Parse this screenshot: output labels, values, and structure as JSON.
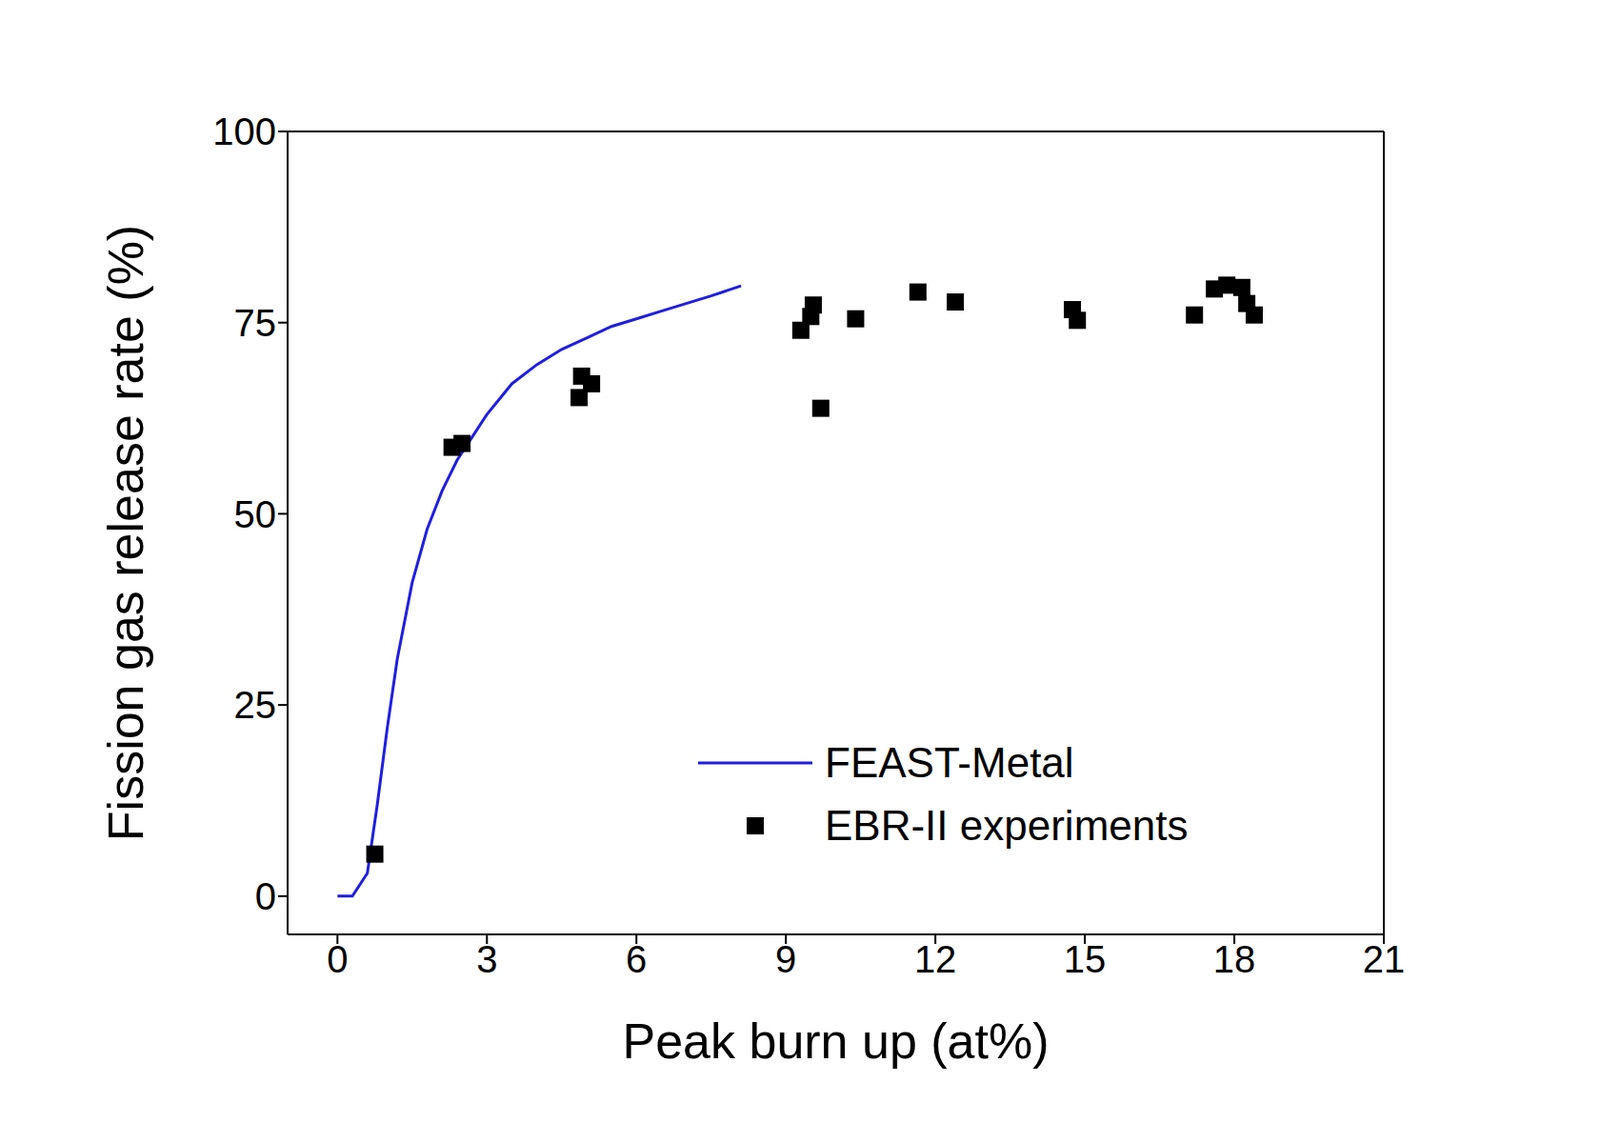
{
  "chart_data": {
    "type": "scatter",
    "x_label": "Peak burn up (at%)",
    "y_label": "Fission gas release rate (%)",
    "xlim": [
      -1,
      21
    ],
    "xticks": [
      0,
      3,
      6,
      9,
      12,
      15,
      18,
      21
    ],
    "ylim": [
      -5,
      100
    ],
    "yticks": [
      0,
      25,
      50,
      75,
      100
    ],
    "grid": false,
    "legend": "lower right",
    "series": [
      {
        "name": "FEAST-Metal",
        "type": "line",
        "color": "#1f1fe0",
        "marker": "none",
        "line_style": "solid",
        "x": [
          0,
          0.3,
          0.6,
          0.8,
          1.0,
          1.2,
          1.5,
          1.8,
          2.1,
          2.4,
          2.7,
          3.0,
          3.5,
          4.0,
          4.5,
          5.0,
          5.5,
          6.0,
          6.5,
          7.0,
          7.5,
          8.1
        ],
        "values": [
          0,
          0,
          3,
          12,
          22,
          31,
          41,
          48,
          53,
          57,
          60,
          63,
          67,
          69.5,
          71.5,
          73,
          74.5,
          75.5,
          76.5,
          77.5,
          78.5,
          79.8
        ]
      },
      {
        "name": "EBR-II experiments",
        "type": "scatter",
        "color": "#000000",
        "marker": "square",
        "x": [
          0.75,
          2.3,
          2.5,
          4.85,
          4.9,
          5.1,
          9.3,
          9.5,
          9.55,
          9.7,
          10.4,
          11.65,
          12.4,
          14.75,
          14.85,
          17.2,
          17.6,
          17.85,
          18.15,
          18.25,
          18.4
        ],
        "values": [
          5.5,
          58.7,
          59.2,
          65.2,
          68,
          67,
          74,
          75.8,
          77.3,
          63.8,
          75.5,
          79,
          77.7,
          76.7,
          75.3,
          76,
          79.4,
          79.9,
          79.6,
          77.5,
          76
        ]
      }
    ]
  }
}
